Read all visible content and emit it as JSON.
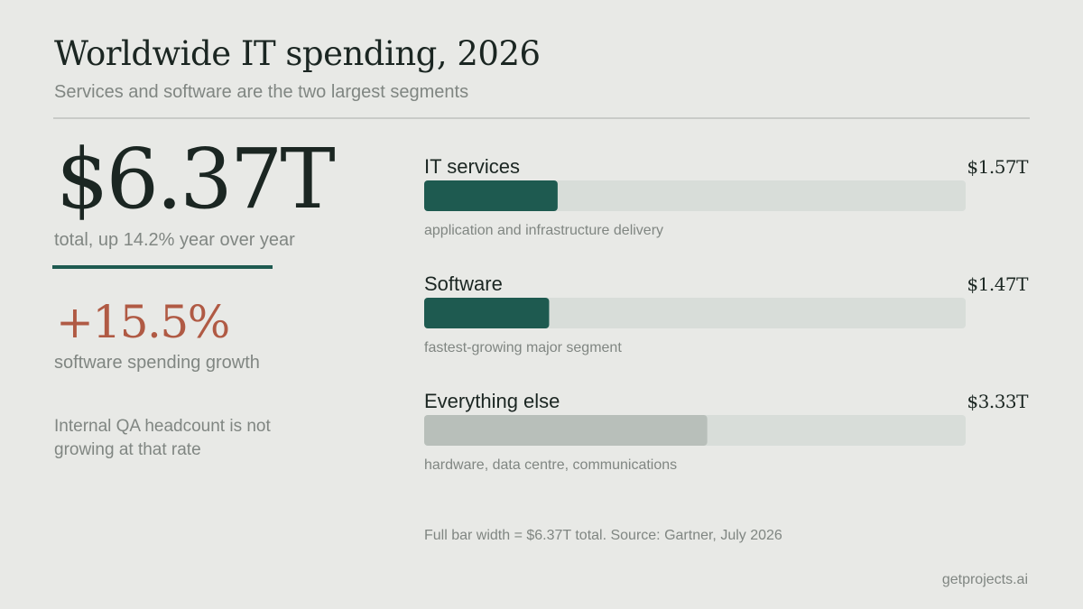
{
  "header": {
    "title": "Worldwide IT spending, 2026",
    "subtitle": "Services and software are the two largest segments"
  },
  "summary": {
    "total_value": "$6.37T",
    "total_caption": "total, up 14.2% year over year",
    "growth_value": "+15.5%",
    "growth_caption": "software spending growth",
    "note": "Internal QA headcount is not growing at that rate"
  },
  "colors": {
    "background": "#e8e9e6",
    "accent": "#1e5a50",
    "highlight_bar": "#1e5a50",
    "muted_bar": "#b8bfba",
    "track": "#d8ddd9",
    "growth": "#b05a44",
    "text": "#1b2622",
    "muted_text": "#808682"
  },
  "chart_data": {
    "type": "bar",
    "orientation": "horizontal",
    "unit": "trillion USD",
    "total": 6.37,
    "categories": [
      "IT services",
      "Software",
      "Everything else"
    ],
    "values": [
      1.57,
      1.47,
      3.33
    ],
    "value_labels": [
      "$1.57T",
      "$1.47T",
      "$3.33T"
    ],
    "descriptions": [
      "application and infrastructure delivery",
      "fastest-growing major segment",
      "hardware, data centre, communications"
    ],
    "highlighted": [
      true,
      true,
      false
    ],
    "xlim": [
      0,
      6.37
    ]
  },
  "footer": {
    "note": "Full bar width = $6.37T total.  Source: Gartner, July 2026",
    "credit": "getprojects.ai"
  }
}
